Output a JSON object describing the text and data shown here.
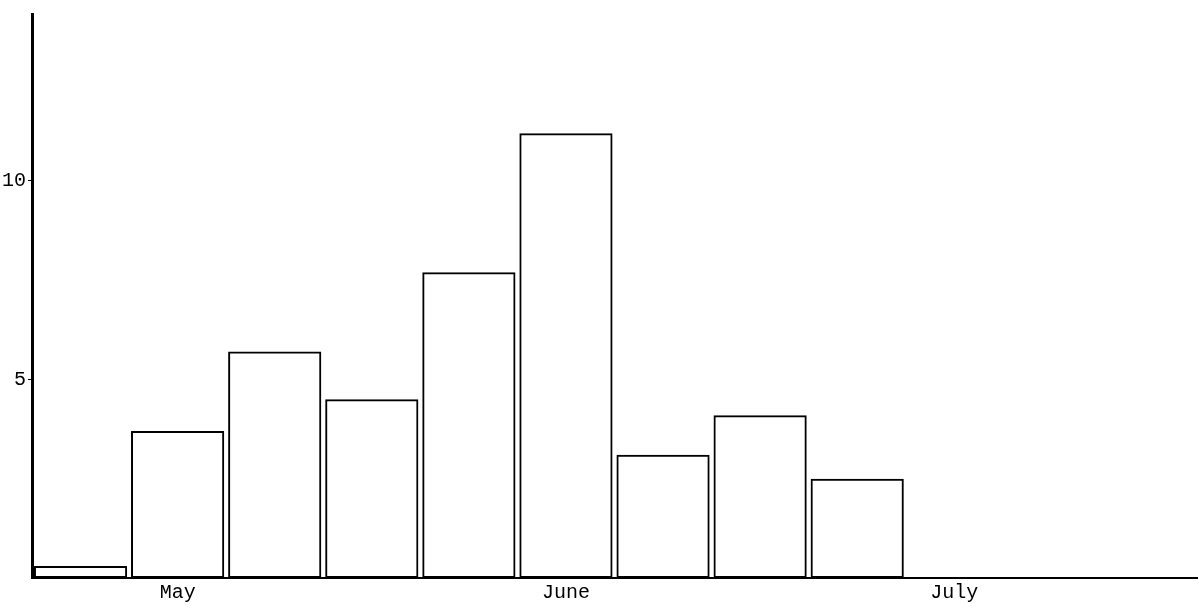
{
  "chart_data": {
    "type": "bar",
    "categories": [
      null,
      "May",
      null,
      null,
      null,
      "June",
      null,
      null,
      null,
      "July",
      null,
      null
    ],
    "values": [
      0.3,
      3.7,
      5.7,
      4.5,
      7.7,
      11.2,
      3.1,
      4.1,
      2.5,
      null,
      null,
      null
    ],
    "color": "#000000",
    "ylim": [
      0,
      14.2
    ],
    "yticks": [
      5,
      10
    ],
    "grid": false,
    "legend": false
  }
}
